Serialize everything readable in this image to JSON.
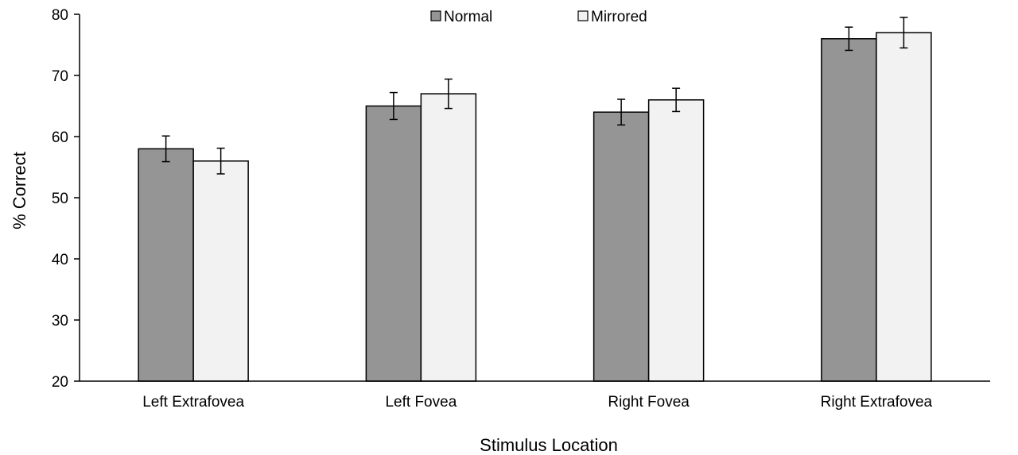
{
  "chart_data": {
    "type": "bar",
    "categories": [
      "Left Extrafovea",
      "Left Fovea",
      "Right Fovea",
      "Right Extrafovea"
    ],
    "series": [
      {
        "name": "Normal",
        "values": [
          58,
          65,
          64,
          76
        ],
        "errors": [
          2.1,
          2.2,
          2.1,
          1.9
        ],
        "color": "#959595"
      },
      {
        "name": "Mirrored",
        "values": [
          56,
          67,
          66,
          77
        ],
        "errors": [
          2.1,
          2.4,
          1.9,
          2.5
        ],
        "color": "#f2f2f2"
      }
    ],
    "xlabel": "Stimulus Location",
    "ylabel": "% Correct",
    "ylim": [
      20,
      80
    ],
    "yticks": [
      "20",
      "30",
      "40",
      "50",
      "60",
      "70",
      "80"
    ],
    "grid": false,
    "legend_position": "top-center"
  }
}
